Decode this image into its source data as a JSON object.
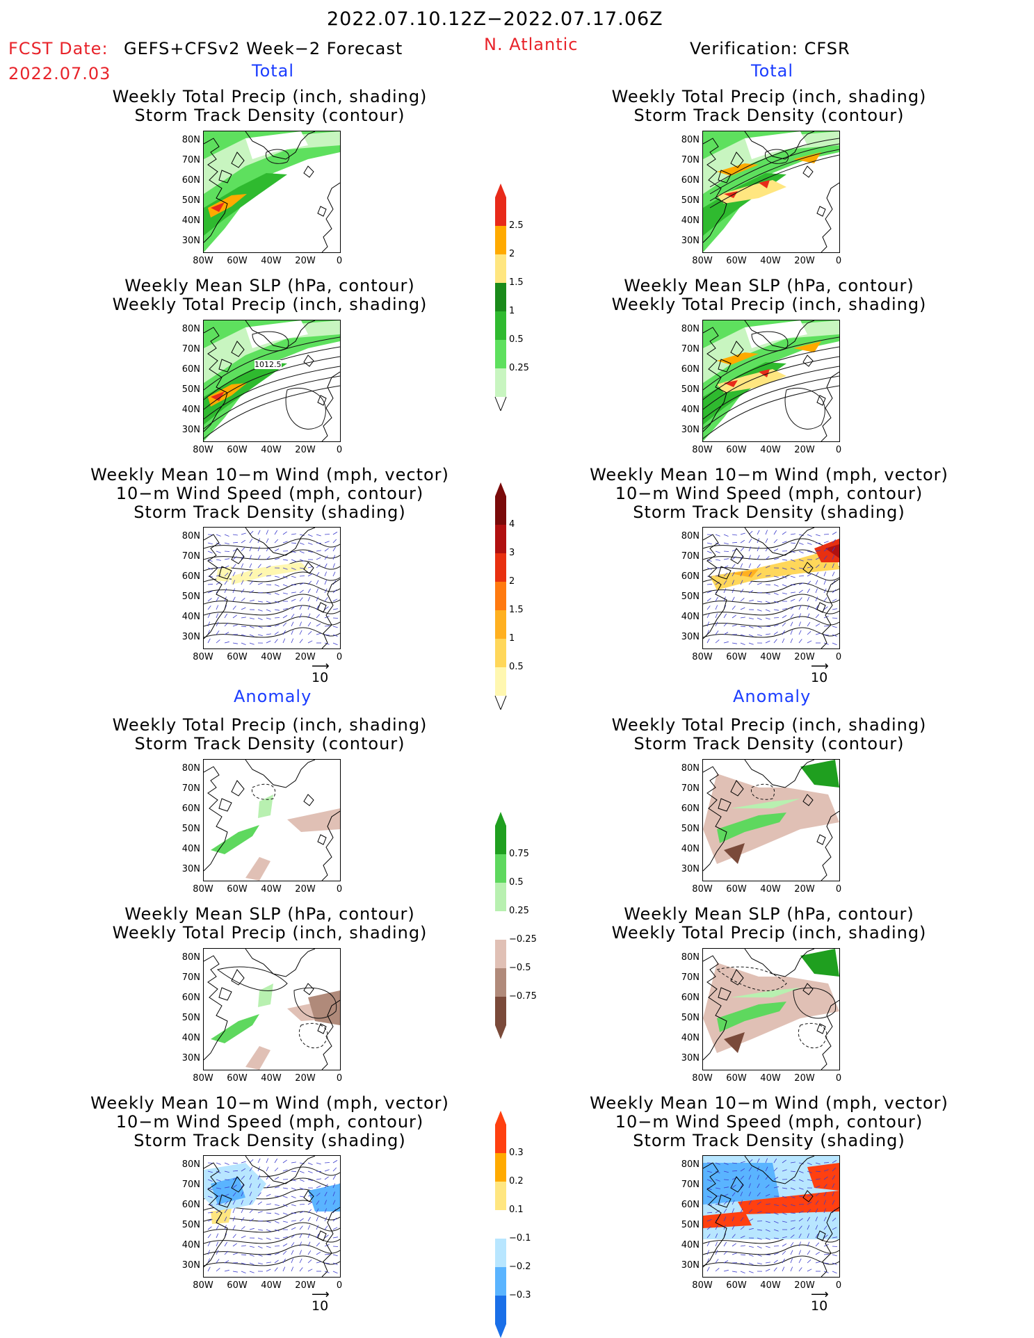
{
  "header": {
    "period": "2022.07.10.12Z−2022.07.17.06Z",
    "fcst_label": "FCST Date:",
    "fcst_model": "GEFS+CFSv2 Week−2 Forecast",
    "fcst_date": "2022.07.03",
    "region": "N. Atlantic",
    "verification": "Verification: CFSR"
  },
  "sections": {
    "total": "Total",
    "anomaly": "Anomaly"
  },
  "titles": {
    "precip_track": [
      "Weekly Total Precip (inch, shading)",
      "Storm Track Density (contour)"
    ],
    "slp_precip": [
      "Weekly Mean SLP (hPa, contour)",
      "Weekly Total Precip (inch, shading)"
    ],
    "wind": [
      "Weekly Mean 10−m Wind (mph, vector)",
      "10−m Wind Speed (mph, contour)",
      "Storm Track Density (shading)"
    ]
  },
  "axes": {
    "lat_labels": [
      "80N",
      "70N",
      "60N",
      "50N",
      "40N",
      "30N"
    ],
    "lon_labels": [
      "80W",
      "60W",
      "40W",
      "20W",
      "0"
    ]
  },
  "contour_label": "1012.5",
  "vector_ref": "10",
  "colorbars": {
    "precip_total": [
      "2.5",
      "2",
      "1.5",
      "1",
      "0.5",
      "0.25"
    ],
    "density_total": [
      "4",
      "3",
      "2",
      "1.5",
      "1",
      "0.5"
    ],
    "precip_anom": [
      "0.75",
      "0.5",
      "0.25",
      "−0.25",
      "−0.5",
      "−0.75"
    ],
    "density_anom": [
      "0.3",
      "0.2",
      "0.1",
      "−0.1",
      "−0.2",
      "−0.3"
    ]
  },
  "colors": {
    "precip_levels": [
      "#c8f5c0",
      "#5ee05e",
      "#2fba2f",
      "#1a8a1a",
      "#ffe680",
      "#ffaa00",
      "#e82a1a"
    ],
    "density_levels": [
      "#fff7b0",
      "#ffd75a",
      "#ffb020",
      "#ff7a10",
      "#e83010",
      "#b01010"
    ],
    "anom_pos": [
      "#b8f0b0",
      "#5ed85e",
      "#1f9f1f"
    ],
    "anom_neg": [
      "#e0c0b5",
      "#b08a7a",
      "#7a4a3a"
    ],
    "dens_anom_pos": [
      "#ffe680",
      "#ffaa00",
      "#ff4010"
    ],
    "dens_anom_neg": [
      "#b8e6ff",
      "#5ab4ff",
      "#1a6fe8"
    ],
    "red_text": "#e8232a",
    "blue_text": "#1a3cff"
  }
}
